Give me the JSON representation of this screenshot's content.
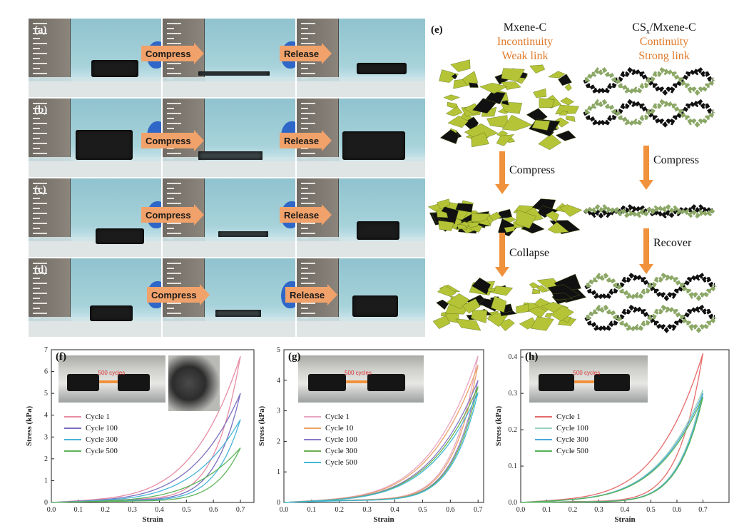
{
  "photos": {
    "rows": [
      {
        "label": "(a)",
        "arrow1": "Compress",
        "arrow2": "Release"
      },
      {
        "label": "(b)",
        "arrow1": "Compress",
        "arrow2": "Release"
      },
      {
        "label": "(c)",
        "arrow1": "Compress",
        "arrow2": "Release"
      },
      {
        "label": "(d)",
        "arrow1": "Compress",
        "arrow2": "Release"
      }
    ]
  },
  "schematic": {
    "label": "(e)",
    "left": {
      "title": "Mxene-C",
      "line1": "Incontinuity",
      "line2": "Weak link",
      "step1": "Compress",
      "step2": "Collapse"
    },
    "right": {
      "title_pre": "CS",
      "title_sub": "x",
      "title_post": "/Mxene-C",
      "line1": "Continuity",
      "line2": "Strong link",
      "step1": "Compress",
      "step2": "Recover"
    },
    "colors": {
      "accent": "#e07a2a",
      "flake_green": "#b5c437",
      "flake_dark": "#111111"
    }
  },
  "chart_data": [
    {
      "type": "line",
      "label": "(f)",
      "xlabel": "Strain",
      "ylabel": "Stress (kPa)",
      "xlim": [
        0,
        0.75
      ],
      "ylim": [
        0,
        7
      ],
      "xticks": [
        "0.0",
        "0.1",
        "0.2",
        "0.3",
        "0.4",
        "0.5",
        "0.6",
        "0.7"
      ],
      "yticks": [
        "0",
        "1",
        "2",
        "3",
        "4",
        "5",
        "6",
        "7"
      ],
      "inset_text": "500 cycles",
      "series": [
        {
          "name": "Cycle 1",
          "color": "#e88ca4",
          "peak": 6.7,
          "unload_mid": 0.9
        },
        {
          "name": "Cycle 100",
          "color": "#7b6fc0",
          "peak": 5.0,
          "unload_mid": 0.7
        },
        {
          "name": "Cycle 300",
          "color": "#48b3d8",
          "peak": 3.8,
          "unload_mid": 0.55
        },
        {
          "name": "Cycle 500",
          "color": "#5db45a",
          "peak": 2.5,
          "unload_mid": 0.4
        }
      ]
    },
    {
      "type": "line",
      "label": "(g)",
      "xlabel": "Strain",
      "ylabel": "Stress (kPa)",
      "xlim": [
        0,
        0.72
      ],
      "ylim": [
        0,
        5
      ],
      "xticks": [
        "0.0",
        "0.1",
        "0.2",
        "0.3",
        "0.4",
        "0.5",
        "0.6",
        "0.7"
      ],
      "yticks": [
        "0",
        "1",
        "2",
        "3",
        "4",
        "5"
      ],
      "inset_text": "500 cycles",
      "series": [
        {
          "name": "Cycle 1",
          "color": "#e9a5c2",
          "peak": 4.8,
          "unload_mid": 0.6
        },
        {
          "name": "Cycle 10",
          "color": "#e8a36b",
          "peak": 4.5,
          "unload_mid": 0.55
        },
        {
          "name": "Cycle 100",
          "color": "#8b7ac8",
          "peak": 4.0,
          "unload_mid": 0.5
        },
        {
          "name": "Cycle 300",
          "color": "#6bb04f",
          "peak": 3.8,
          "unload_mid": 0.5
        },
        {
          "name": "Cycle 500",
          "color": "#3fb9d6",
          "peak": 3.6,
          "unload_mid": 0.45
        }
      ]
    },
    {
      "type": "line",
      "label": "(h)",
      "xlabel": "Strain",
      "ylabel": "Stress (kPa)",
      "xlim": [
        0,
        0.8
      ],
      "ylim": [
        0,
        0.42
      ],
      "xticks": [
        "0.0",
        "0.1",
        "0.2",
        "0.3",
        "0.4",
        "0.5",
        "0.6",
        "0.7"
      ],
      "yticks": [
        "0.0",
        "0.1",
        "0.2",
        "0.3",
        "0.4"
      ],
      "inset_text": "500 cycles",
      "series": [
        {
          "name": "Cycle 1",
          "color": "#e56a6a",
          "peak": 0.41,
          "unload_mid": 0.02
        },
        {
          "name": "Cycle 100",
          "color": "#9bd2c0",
          "peak": 0.31,
          "unload_mid": 0.015
        },
        {
          "name": "Cycle 300",
          "color": "#4aa9d8",
          "peak": 0.3,
          "unload_mid": 0.012
        },
        {
          "name": "Cycle 500",
          "color": "#55b35a",
          "peak": 0.29,
          "unload_mid": 0.01
        }
      ]
    }
  ]
}
